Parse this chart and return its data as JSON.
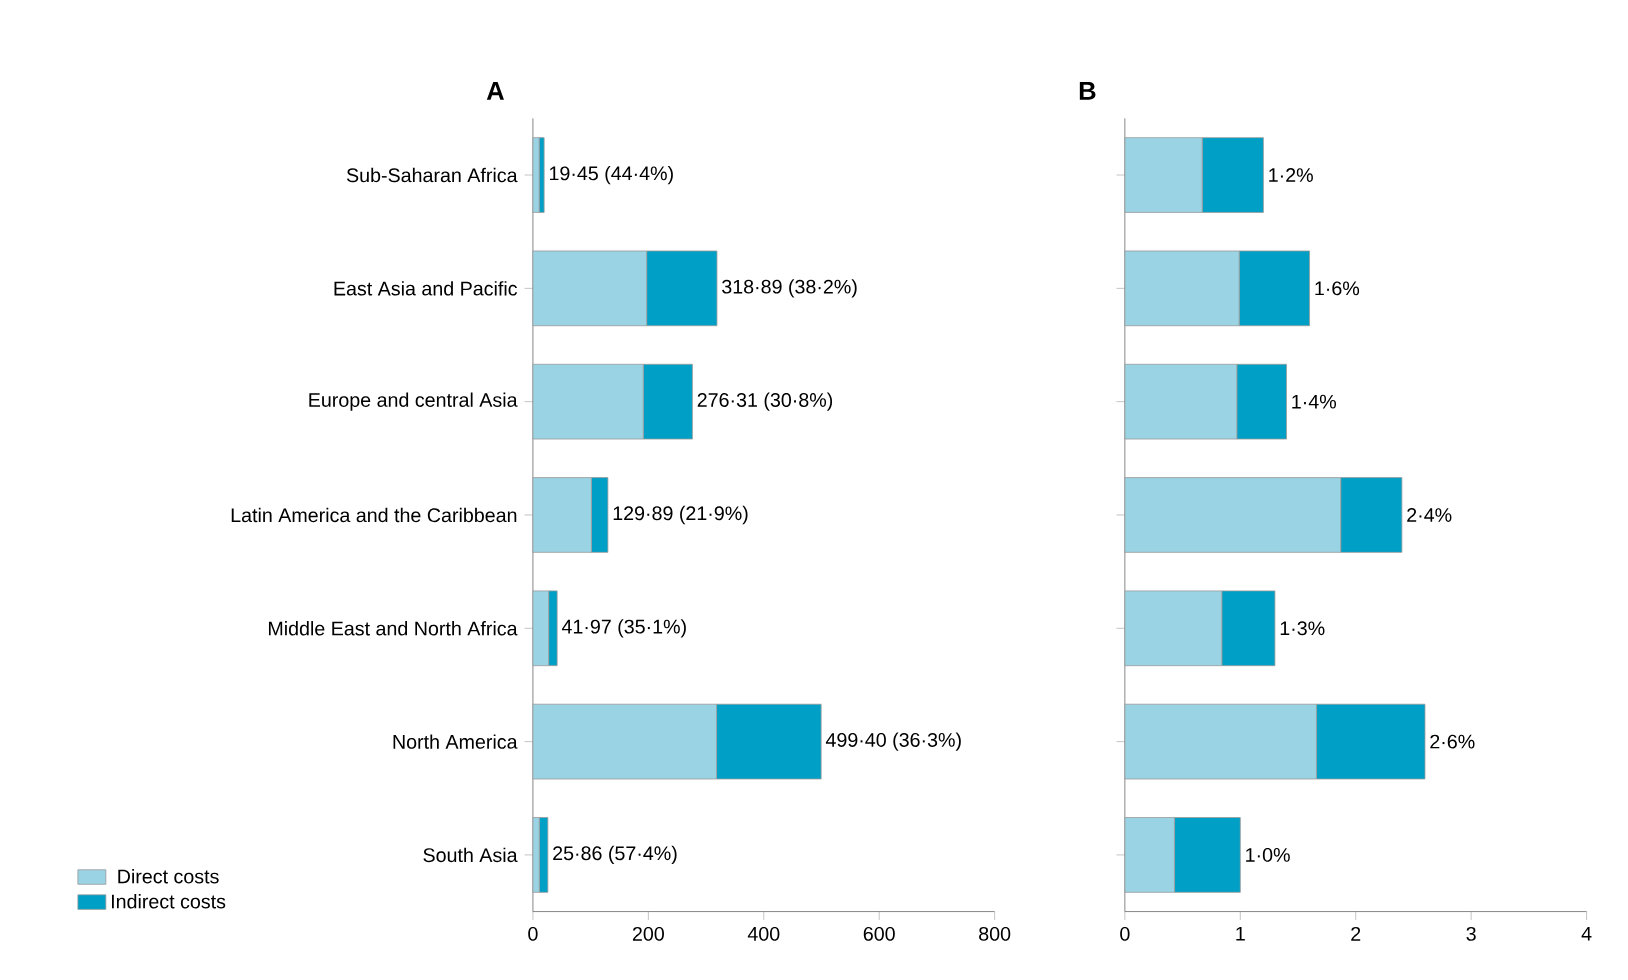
{
  "chart_data": [
    {
      "type": "bar",
      "title": "A",
      "orientation": "horizontal",
      "stacked": true,
      "categories": [
        "Sub-Saharan Africa",
        "East Asia and Pacific",
        "Europe and central Asia",
        "Latin America and the Caribbean",
        "Middle East and North Africa",
        "North America",
        "South Asia"
      ],
      "series": [
        {
          "name": "Direct costs",
          "color": "#9ad3e4",
          "values": [
            10.81,
            197.07,
            191.21,
            101.44,
            27.24,
            318.12,
            11.02
          ]
        },
        {
          "name": "Indirect costs",
          "color": "#00a0c6",
          "values": [
            8.64,
            121.82,
            85.1,
            28.45,
            14.73,
            181.28,
            14.84
          ]
        }
      ],
      "totals": [
        "19·45 (44·4%)",
        "318·89 (38·2%)",
        "276·31 (30·8%)",
        "129·89 (21·9%)",
        "41·97 (35·1%)",
        "499·40 (36·3%)",
        "25·86 (57·4%)"
      ],
      "xlim": [
        0,
        800
      ],
      "xticks": [
        0,
        200,
        400,
        600,
        800
      ],
      "legend": "bottom left"
    },
    {
      "type": "bar",
      "title": "B",
      "orientation": "horizontal",
      "stacked": true,
      "categories": [
        null,
        null,
        null,
        null,
        null,
        null,
        null
      ],
      "series": [
        {
          "color": "#9ad3e4",
          "values": [
            0.67,
            0.99,
            0.97,
            1.87,
            0.84,
            1.66,
            0.43
          ]
        },
        {
          "color": "#00a0c6",
          "values": [
            0.53,
            0.61,
            0.43,
            0.53,
            0.46,
            0.94,
            0.57
          ]
        }
      ],
      "totals": [
        "1·2%",
        "1·6%",
        "1·4%",
        "2·4%",
        "1·3%",
        "2·6%",
        "1·0%"
      ],
      "xlim": [
        0,
        4
      ],
      "xticks": [
        0,
        1,
        2,
        3,
        4
      ],
      "tick_labels": "x"
    }
  ]
}
